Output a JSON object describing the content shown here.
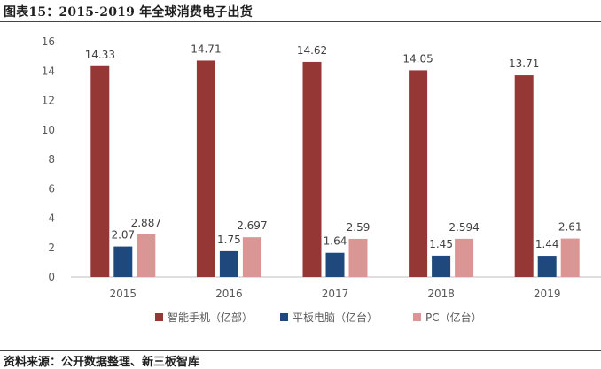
{
  "figure_title": "图表15：2015-2019 年全球消费电子出货",
  "source": "资料来源：公开数据整理、新三板智库",
  "chart_data": {
    "type": "bar",
    "categories": [
      "2015",
      "2016",
      "2017",
      "2018",
      "2019"
    ],
    "series": [
      {
        "name": "智能手机（亿部）",
        "color": "#953735",
        "values": [
          14.33,
          14.71,
          14.62,
          14.05,
          13.71
        ],
        "labels": [
          "14.33",
          "14.71",
          "14.62",
          "14.05",
          "13.71"
        ]
      },
      {
        "name": "平板电脑（亿台）",
        "color": "#1f497d",
        "values": [
          2.07,
          1.75,
          1.64,
          1.45,
          1.44
        ],
        "labels": [
          "2.07",
          "1.75",
          "1.64",
          "1.45",
          "1.44"
        ]
      },
      {
        "name": "PC（亿台）",
        "color": "#d99694",
        "values": [
          2.887,
          2.697,
          2.59,
          2.594,
          2.61
        ],
        "labels": [
          "2.887",
          "2.697",
          "2.59",
          "2.594",
          "2.61"
        ]
      }
    ],
    "ylim": [
      0,
      16
    ],
    "yticks": [
      0,
      2,
      4,
      6,
      8,
      10,
      12,
      14,
      16
    ],
    "grid": false,
    "legend": "bottom"
  }
}
